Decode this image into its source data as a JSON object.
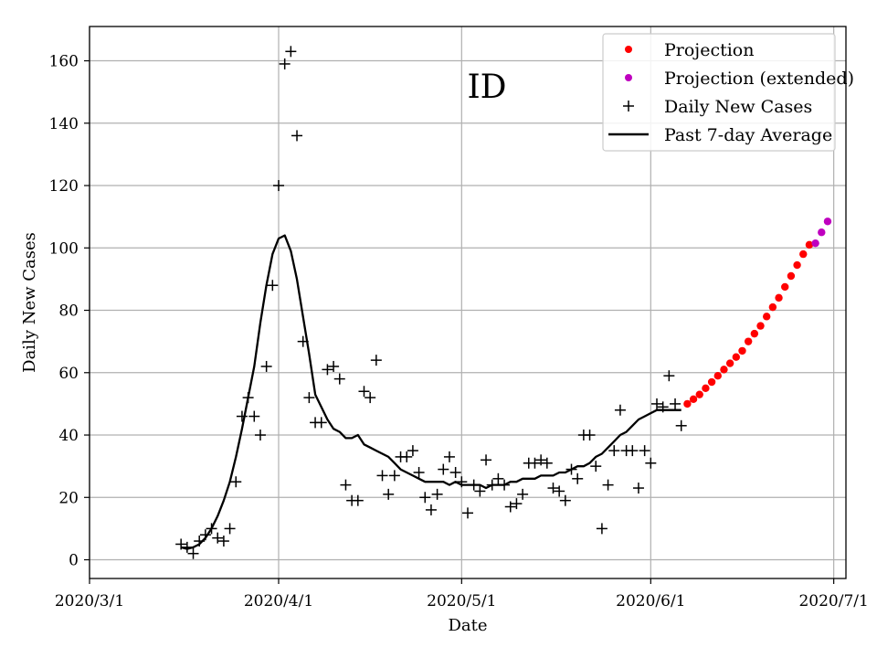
{
  "chart_data": {
    "type": "scatter",
    "region_label": "ID",
    "xlabel": "Date",
    "ylabel": "Daily New Cases",
    "xlim": [
      0,
      124
    ],
    "ylim": [
      -6,
      171
    ],
    "x_origin_date": "2020-03-01",
    "x_ticks": [
      {
        "x": 0,
        "label": "2020/3/1"
      },
      {
        "x": 31,
        "label": "2020/4/1"
      },
      {
        "x": 61,
        "label": "2020/5/1"
      },
      {
        "x": 92,
        "label": "2020/6/1"
      },
      {
        "x": 122,
        "label": "2020/7/1"
      }
    ],
    "y_ticks": [
      0,
      20,
      40,
      60,
      80,
      100,
      120,
      140,
      160
    ],
    "grid": true,
    "legend": {
      "location": "upper right",
      "entries": [
        {
          "key": "projection",
          "label": "Projection",
          "marker": "dot",
          "color": "#ff0000"
        },
        {
          "key": "projection_extended",
          "label": "Projection (extended)",
          "marker": "dot",
          "color": "#bf00bf"
        },
        {
          "key": "daily",
          "label": "Daily New Cases",
          "marker": "plus",
          "color": "#000000"
        },
        {
          "key": "average",
          "label": "Past 7-day Average",
          "marker": "line",
          "color": "#000000"
        }
      ]
    },
    "series": [
      {
        "name": "Daily New Cases",
        "type": "scatter",
        "color": "#000000",
        "x": [
          15,
          16,
          17,
          18,
          19,
          20,
          21,
          22,
          23,
          24,
          25,
          26,
          27,
          28,
          29,
          30,
          31,
          32,
          33,
          34,
          35,
          36,
          37,
          38,
          39,
          40,
          41,
          42,
          43,
          44,
          45,
          46,
          47,
          48,
          49,
          50,
          51,
          52,
          53,
          54,
          55,
          56,
          57,
          58,
          59,
          60,
          61,
          62,
          63,
          64,
          65,
          66,
          67,
          68,
          69,
          70,
          71,
          72,
          73,
          74,
          75,
          76,
          77,
          78,
          79,
          80,
          81,
          82,
          83,
          84,
          85,
          86,
          87,
          88,
          89,
          90,
          91,
          92,
          93,
          94,
          95,
          96,
          97
        ],
        "y": [
          5,
          4,
          2,
          6,
          8,
          10,
          7,
          6,
          10,
          25,
          46,
          52,
          46,
          40,
          62,
          88,
          120,
          159,
          163,
          136,
          70,
          52,
          44,
          44,
          61,
          62,
          58,
          24,
          19,
          19,
          54,
          52,
          64,
          27,
          21,
          27,
          33,
          33,
          35,
          28,
          20,
          16,
          21,
          29,
          33,
          28,
          25,
          15,
          24,
          22,
          32,
          24,
          26,
          24,
          17,
          18,
          21,
          31,
          31,
          32,
          31,
          23,
          22,
          19,
          29,
          26,
          40,
          40,
          30,
          10,
          24,
          35,
          48,
          35,
          35,
          23,
          35,
          31,
          50,
          49,
          59,
          50,
          43
        ]
      },
      {
        "name": "Past 7-day Average",
        "type": "line",
        "color": "#000000",
        "x": [
          15,
          16,
          17,
          18,
          19,
          20,
          21,
          22,
          23,
          24,
          25,
          26,
          27,
          28,
          29,
          30,
          31,
          32,
          33,
          34,
          35,
          36,
          37,
          38,
          39,
          40,
          41,
          42,
          43,
          44,
          45,
          46,
          47,
          48,
          49,
          50,
          51,
          52,
          53,
          54,
          55,
          56,
          57,
          58,
          59,
          60,
          61,
          62,
          63,
          64,
          65,
          66,
          67,
          68,
          69,
          70,
          71,
          72,
          73,
          74,
          75,
          76,
          77,
          78,
          79,
          80,
          81,
          82,
          83,
          84,
          85,
          86,
          87,
          88,
          89,
          90,
          91,
          92,
          93,
          94,
          95,
          96,
          97
        ],
        "y": [
          4,
          3.5,
          4,
          5,
          7,
          10,
          14,
          19,
          25,
          33,
          42,
          52,
          62,
          76,
          88,
          98,
          103,
          104,
          99,
          90,
          78,
          66,
          53,
          49,
          45,
          42,
          41,
          39,
          39,
          40,
          37,
          36,
          35,
          34,
          33,
          31,
          29,
          28,
          27,
          26,
          25,
          25,
          25,
          25,
          24,
          25,
          24,
          24,
          24,
          24,
          23,
          24,
          24,
          24,
          25,
          25,
          26,
          26,
          26,
          27,
          27,
          27,
          28,
          28,
          29,
          30,
          30,
          31,
          33,
          34,
          36,
          38,
          40,
          41,
          43,
          45,
          46,
          47,
          48,
          48,
          48,
          48,
          48
        ]
      },
      {
        "name": "Projection",
        "type": "scatter",
        "color": "#ff0000",
        "x": [
          98,
          99,
          100,
          101,
          102,
          103,
          104,
          105,
          106,
          107,
          108,
          109,
          110,
          111,
          112,
          113,
          114,
          115,
          116,
          117,
          118
        ],
        "y": [
          50,
          51.5,
          53,
          55,
          57,
          59,
          61,
          63,
          65,
          67,
          70,
          72.5,
          75,
          78,
          81,
          84,
          87.5,
          91,
          94.5,
          98,
          101
        ]
      },
      {
        "name": "Projection (extended)",
        "type": "scatter",
        "color": "#bf00bf",
        "x": [
          119,
          120,
          121
        ],
        "y": [
          101.5,
          105,
          108.5
        ]
      }
    ]
  }
}
